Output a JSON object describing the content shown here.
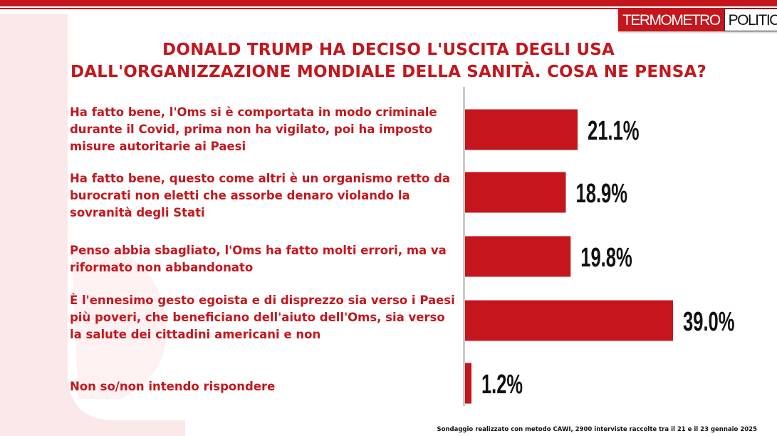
{
  "brand": {
    "logo_left": "TERMOMETRO",
    "logo_right": "POLITICO",
    "accent_color": "#c4161c"
  },
  "chart_data": {
    "type": "bar",
    "orientation": "horizontal",
    "title_line1": "DONALD TRUMP HA DECISO L'USCITA DEGLI USA",
    "title_line2": "DALL'ORGANIZZAZIONE MONDIALE DELLA SANITÀ. COSA NE PENSA?",
    "categories": [
      "Ha fatto bene, l'Oms si è comportata in modo criminale durante il Covid, prima non ha vigilato, poi ha imposto misure autoritarie ai Paesi",
      "Ha fatto bene, questo come altri è un organismo retto da burocrati non eletti che assorbe denaro violando la sovranità degli Stati",
      "Penso abbia sbagliato, l'Oms ha fatto molti errori, ma va riformato non abbandonato",
      "È l'ennesimo gesto egoista e di disprezzo sia verso i Paesi più poveri, che beneficiano dell'aiuto dell'Oms, sia verso la salute dei cittadini americani e non",
      "Non so/non intendo rispondere"
    ],
    "values": [
      21.1,
      18.9,
      19.8,
      39.0,
      1.2
    ],
    "value_labels": [
      "21.1%",
      "18.9%",
      "19.8%",
      "39.0%",
      "1.2%"
    ],
    "unit": "%",
    "bar_color": "#c4161c",
    "xlim": [
      0,
      39.0
    ],
    "grid": false,
    "legend": "none"
  },
  "footnote": "Sondaggio realizzato con metodo CAWI, 2900 interviste raccolte tra il 21 e il 23 gennaio 2025"
}
